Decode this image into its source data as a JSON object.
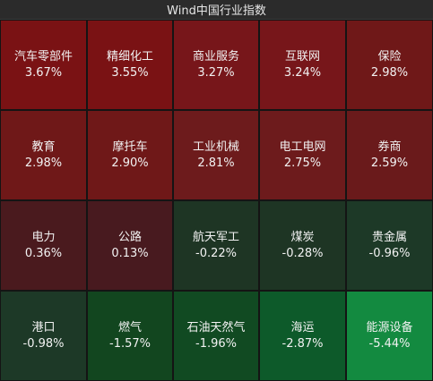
{
  "header": {
    "title": "Wind中国行业指数"
  },
  "cells": [
    {
      "name": "汽车零部件",
      "change": "3.67%",
      "color": "#7a1214"
    },
    {
      "name": "精细化工",
      "change": "3.55%",
      "color": "#7a1214"
    },
    {
      "name": "商业服务",
      "change": "3.27%",
      "color": "#77161a"
    },
    {
      "name": "互联网",
      "change": "3.24%",
      "color": "#77161a"
    },
    {
      "name": "保险",
      "change": "2.98%",
      "color": "#6f1818"
    },
    {
      "name": "教育",
      "change": "2.98%",
      "color": "#6f1818"
    },
    {
      "name": "摩托车",
      "change": "2.90%",
      "color": "#6f1818"
    },
    {
      "name": "工业机械",
      "change": "2.81%",
      "color": "#6d1b1c"
    },
    {
      "name": "电工电网",
      "change": "2.75%",
      "color": "#6d1b1c"
    },
    {
      "name": "券商",
      "change": "2.59%",
      "color": "#6a1a1b"
    },
    {
      "name": "电力",
      "change": "0.36%",
      "color": "#4a1a1e"
    },
    {
      "name": "公路",
      "change": "0.13%",
      "color": "#481a1f"
    },
    {
      "name": "航天军工",
      "change": "-0.22%",
      "color": "#1e3524"
    },
    {
      "name": "煤炭",
      "change": "-0.28%",
      "color": "#1e3524"
    },
    {
      "name": "贵金属",
      "change": "-0.96%",
      "color": "#1d3927"
    },
    {
      "name": "港口",
      "change": "-0.98%",
      "color": "#1d3927"
    },
    {
      "name": "燃气",
      "change": "-1.57%",
      "color": "#12461f"
    },
    {
      "name": "石油天然气",
      "change": "-1.96%",
      "color": "#114a22"
    },
    {
      "name": "海运",
      "change": "-2.87%",
      "color": "#0d5a2a"
    },
    {
      "name": "能源设备",
      "change": "-5.44%",
      "color": "#138a40"
    }
  ]
}
